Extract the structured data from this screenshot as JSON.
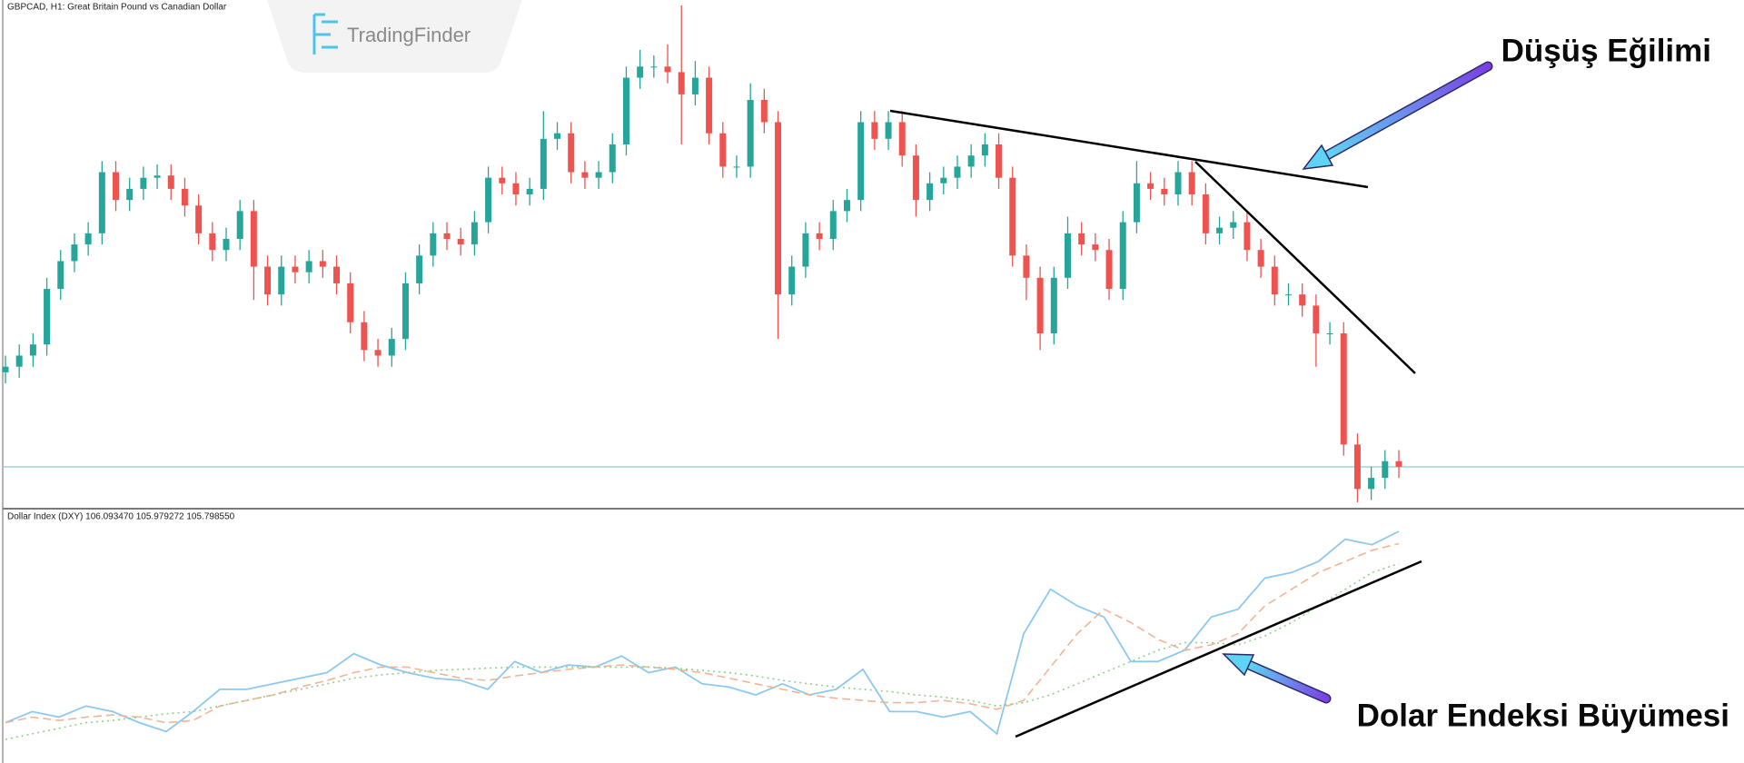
{
  "watermark": "TradingFinder",
  "chart_data": [
    {
      "type": "candlestick",
      "title": "GBPCAD, H1: Great Britain Pound vs Canadian Dollar",
      "up_color": "#26a69a",
      "down_color": "#ef5350",
      "open": [
        1.8065,
        1.807,
        1.808,
        1.809,
        1.814,
        1.8165,
        1.818,
        1.819,
        1.8245,
        1.822,
        1.823,
        1.824,
        1.8242,
        1.823,
        1.8215,
        1.819,
        1.8175,
        1.8185,
        1.821,
        1.816,
        1.8135,
        1.816,
        1.8155,
        1.8165,
        1.816,
        1.8145,
        1.811,
        1.8085,
        1.808,
        1.8095,
        1.8145,
        1.817,
        1.819,
        1.8185,
        1.818,
        1.82,
        1.824,
        1.8235,
        1.8225,
        1.823,
        1.8275,
        1.828,
        1.8245,
        1.824,
        1.8245,
        1.827,
        1.833,
        1.834,
        1.834,
        1.8335,
        1.8315,
        1.833,
        1.828,
        1.825,
        1.825,
        1.831,
        1.829,
        1.8135,
        1.816,
        1.819,
        1.8185,
        1.821,
        1.822,
        1.829,
        1.8275,
        1.829,
        1.826,
        1.822,
        1.8235,
        1.824,
        1.825,
        1.826,
        1.827,
        1.824,
        1.817,
        1.815,
        1.81,
        1.815,
        1.819,
        1.818,
        1.8175,
        1.814,
        1.82,
        1.8235,
        1.823,
        1.8225,
        1.8245,
        1.8225,
        1.819,
        1.8195,
        1.82,
        1.8175,
        1.816,
        1.8135,
        1.8135,
        1.8125,
        1.81,
        1.81,
        1.8,
        1.796,
        1.797,
        1.7985
      ],
      "high": [
        1.808,
        1.809,
        1.81,
        1.815,
        1.8175,
        1.819,
        1.82,
        1.8255,
        1.8255,
        1.824,
        1.825,
        1.8252,
        1.8252,
        1.824,
        1.8225,
        1.82,
        1.8195,
        1.822,
        1.822,
        1.817,
        1.817,
        1.817,
        1.8175,
        1.8175,
        1.817,
        1.8155,
        1.812,
        1.8095,
        1.8105,
        1.8155,
        1.818,
        1.82,
        1.82,
        1.8195,
        1.821,
        1.825,
        1.825,
        1.8245,
        1.824,
        1.83,
        1.829,
        1.829,
        1.8255,
        1.8255,
        1.828,
        1.834,
        1.8355,
        1.835,
        1.836,
        1.8395,
        1.8345,
        1.834,
        1.829,
        1.826,
        1.8325,
        1.832,
        1.83,
        1.817,
        1.82,
        1.82,
        1.822,
        1.823,
        1.83,
        1.83,
        1.83,
        1.83,
        1.827,
        1.8245,
        1.825,
        1.826,
        1.827,
        1.828,
        1.828,
        1.825,
        1.818,
        1.816,
        1.816,
        1.8205,
        1.82,
        1.819,
        1.8185,
        1.821,
        1.8255,
        1.8245,
        1.824,
        1.8255,
        1.8255,
        1.8235,
        1.8205,
        1.821,
        1.821,
        1.8185,
        1.817,
        1.8145,
        1.8145,
        1.8135,
        1.811,
        1.811,
        1.801,
        1.798,
        1.7995,
        1.7995
      ],
      "low": [
        1.8055,
        1.806,
        1.807,
        1.808,
        1.813,
        1.8155,
        1.817,
        1.818,
        1.821,
        1.821,
        1.822,
        1.823,
        1.822,
        1.8205,
        1.818,
        1.8165,
        1.8165,
        1.8175,
        1.813,
        1.8125,
        1.8125,
        1.8145,
        1.8145,
        1.815,
        1.8135,
        1.81,
        1.8075,
        1.807,
        1.807,
        1.8085,
        1.8135,
        1.816,
        1.8175,
        1.817,
        1.817,
        1.819,
        1.8225,
        1.8215,
        1.8215,
        1.822,
        1.8265,
        1.8235,
        1.823,
        1.823,
        1.8235,
        1.826,
        1.832,
        1.833,
        1.8325,
        1.827,
        1.8305,
        1.827,
        1.824,
        1.824,
        1.824,
        1.828,
        1.8095,
        1.8125,
        1.815,
        1.8175,
        1.8175,
        1.82,
        1.821,
        1.8265,
        1.8265,
        1.825,
        1.8205,
        1.821,
        1.8225,
        1.823,
        1.824,
        1.825,
        1.823,
        1.816,
        1.813,
        1.8085,
        1.809,
        1.814,
        1.817,
        1.8165,
        1.813,
        1.813,
        1.819,
        1.822,
        1.8215,
        1.8215,
        1.8215,
        1.818,
        1.818,
        1.8185,
        1.8165,
        1.815,
        1.8125,
        1.8125,
        1.8115,
        1.807,
        1.809,
        1.799,
        1.7948,
        1.795,
        1.796,
        1.797
      ],
      "close": [
        1.807,
        1.808,
        1.809,
        1.814,
        1.8165,
        1.818,
        1.819,
        1.8245,
        1.822,
        1.823,
        1.824,
        1.8242,
        1.823,
        1.8215,
        1.819,
        1.8175,
        1.8185,
        1.821,
        1.816,
        1.8135,
        1.816,
        1.8155,
        1.8165,
        1.816,
        1.8145,
        1.811,
        1.8085,
        1.808,
        1.8095,
        1.8145,
        1.817,
        1.819,
        1.8185,
        1.818,
        1.82,
        1.824,
        1.8235,
        1.8225,
        1.823,
        1.8275,
        1.828,
        1.8245,
        1.824,
        1.8245,
        1.827,
        1.833,
        1.834,
        1.834,
        1.8335,
        1.8315,
        1.833,
        1.828,
        1.825,
        1.825,
        1.831,
        1.829,
        1.8135,
        1.816,
        1.819,
        1.8185,
        1.821,
        1.822,
        1.829,
        1.8275,
        1.829,
        1.826,
        1.822,
        1.8235,
        1.824,
        1.825,
        1.826,
        1.827,
        1.824,
        1.817,
        1.815,
        1.81,
        1.815,
        1.819,
        1.818,
        1.8175,
        1.814,
        1.82,
        1.8235,
        1.823,
        1.8225,
        1.8245,
        1.8225,
        1.819,
        1.8195,
        1.82,
        1.8175,
        1.816,
        1.8135,
        1.8135,
        1.8125,
        1.81,
        1.81,
        1.8,
        1.796,
        1.797,
        1.7985,
        1.798
      ],
      "annotations": [
        "Düşüş Eğilimi"
      ]
    },
    {
      "type": "line",
      "title": "Dollar Index (DXY) 106.093470 105.979272 105.798550",
      "series": [
        {
          "color": "#8cc8f0",
          "style": "solid",
          "values": [
            104.37,
            104.47,
            104.42,
            104.52,
            104.47,
            104.37,
            104.29,
            104.47,
            104.67,
            104.67,
            104.72,
            104.77,
            104.82,
            104.99,
            104.89,
            104.82,
            104.77,
            104.75,
            104.67,
            104.92,
            104.82,
            104.89,
            104.87,
            104.97,
            104.82,
            104.87,
            104.72,
            104.69,
            104.62,
            104.72,
            104.62,
            104.67,
            104.85,
            104.47,
            104.47,
            104.42,
            104.47,
            104.27,
            105.17,
            105.57,
            105.42,
            105.32,
            104.92,
            104.92,
            105.02,
            105.32,
            105.39,
            105.67,
            105.72,
            105.82,
            106.02,
            105.97,
            106.09
          ]
        },
        {
          "color": "#f4b393",
          "style": "dashed",
          "values": [
            104.37,
            104.42,
            104.39,
            104.42,
            104.44,
            104.42,
            104.37,
            104.39,
            104.52,
            104.57,
            104.62,
            104.69,
            104.75,
            104.82,
            104.87,
            104.87,
            104.82,
            104.77,
            104.75,
            104.79,
            104.82,
            104.85,
            104.87,
            104.89,
            104.87,
            104.85,
            104.82,
            104.77,
            104.72,
            104.67,
            104.62,
            104.59,
            104.57,
            104.55,
            104.55,
            104.57,
            104.54,
            104.49,
            104.57,
            104.87,
            105.17,
            105.39,
            105.27,
            105.12,
            105.02,
            105.07,
            105.17,
            105.42,
            105.57,
            105.72,
            105.82,
            105.92,
            105.98
          ]
        },
        {
          "color": "#8fd18a",
          "style": "dotted",
          "values": [
            104.22,
            104.27,
            104.32,
            104.37,
            104.39,
            104.42,
            104.45,
            104.47,
            104.52,
            104.57,
            104.62,
            104.67,
            104.72,
            104.77,
            104.8,
            104.82,
            104.84,
            104.85,
            104.86,
            104.87,
            104.87,
            104.87,
            104.87,
            104.87,
            104.87,
            104.86,
            104.84,
            104.82,
            104.79,
            104.75,
            104.72,
            104.69,
            104.67,
            104.65,
            104.62,
            104.6,
            104.57,
            104.52,
            104.55,
            104.62,
            104.72,
            104.82,
            104.92,
            105.02,
            105.09,
            105.09,
            105.07,
            105.15,
            105.27,
            105.42,
            105.57,
            105.72,
            105.8
          ]
        }
      ],
      "annotations": [
        "Dolar Endeksi Büyümesi"
      ]
    }
  ]
}
